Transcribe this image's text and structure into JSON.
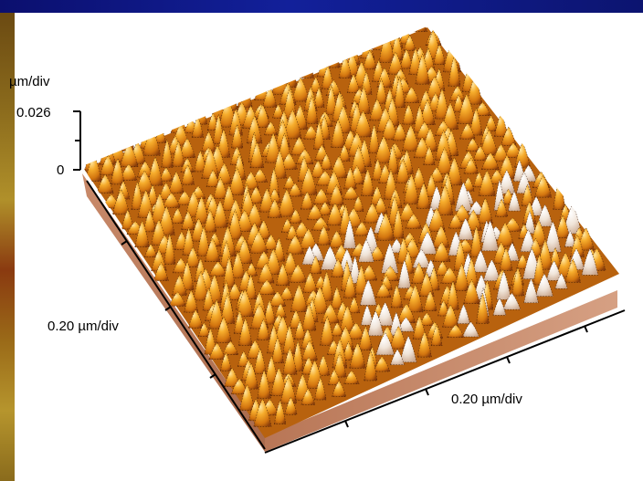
{
  "chart_data": {
    "type": "surface",
    "axes": {
      "z": {
        "unit_label": "µm/div",
        "ticks": [
          "0.026",
          "0"
        ],
        "range": [
          0,
          0.026
        ]
      },
      "y": {
        "label": "0.20 µm/div"
      },
      "x": {
        "label": "0.20 µm/div"
      }
    },
    "colormap": [
      "#7a3c0c",
      "#c86a10",
      "#f0a020",
      "#ffd36a",
      "#f4ead8"
    ]
  }
}
